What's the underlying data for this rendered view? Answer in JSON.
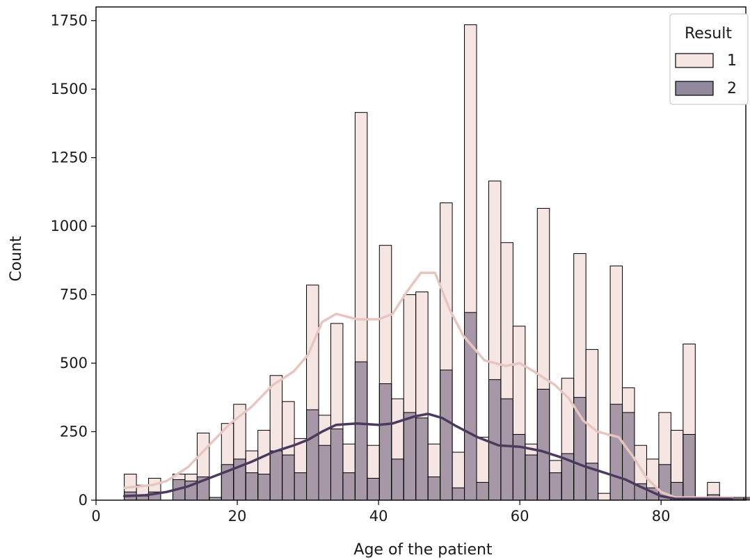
{
  "chart_data": {
    "type": "bar",
    "subtype": "histogram with kde",
    "xlabel": "Age of the patient",
    "ylabel": "Count",
    "xlim": [
      0,
      92
    ],
    "ylim": [
      0,
      1800
    ],
    "xticks": [
      0,
      20,
      40,
      60,
      80
    ],
    "yticks": [
      0,
      250,
      500,
      750,
      1000,
      1250,
      1500,
      1750
    ],
    "legend": {
      "title": "Result",
      "position": "top-right"
    },
    "bin_start": 4,
    "bin_width": 1.72,
    "series": [
      {
        "name": "1",
        "color": "#e8c6c0",
        "values": [
          95,
          55,
          80,
          0,
          95,
          95,
          245,
          0,
          280,
          350,
          180,
          255,
          455,
          360,
          225,
          785,
          310,
          645,
          205,
          1415,
          200,
          930,
          370,
          750,
          760,
          205,
          1085,
          175,
          1735,
          230,
          1165,
          940,
          635,
          205,
          1065,
          145,
          445,
          900,
          550,
          25,
          855,
          410,
          200,
          150,
          320,
          255,
          570,
          0,
          65,
          5,
          10,
          10,
          10,
          10,
          10,
          10,
          10,
          50
        ],
        "kde": [
          [
            4,
            45
          ],
          [
            6,
            50
          ],
          [
            8,
            55
          ],
          [
            10,
            70
          ],
          [
            13,
            120
          ],
          [
            16,
            200
          ],
          [
            19,
            280
          ],
          [
            22,
            340
          ],
          [
            25,
            420
          ],
          [
            28,
            470
          ],
          [
            30,
            530
          ],
          [
            32,
            650
          ],
          [
            34,
            680
          ],
          [
            37,
            660
          ],
          [
            40,
            660
          ],
          [
            42,
            680
          ],
          [
            44,
            760
          ],
          [
            46,
            830
          ],
          [
            48,
            830
          ],
          [
            50,
            700
          ],
          [
            52,
            600
          ],
          [
            55,
            510
          ],
          [
            58,
            490
          ],
          [
            60,
            500
          ],
          [
            62,
            470
          ],
          [
            65,
            420
          ],
          [
            67,
            370
          ],
          [
            69,
            290
          ],
          [
            71,
            250
          ],
          [
            74,
            230
          ],
          [
            76,
            160
          ],
          [
            78,
            80
          ],
          [
            80,
            30
          ],
          [
            82,
            10
          ],
          [
            86,
            10
          ],
          [
            90,
            10
          ]
        ]
      },
      {
        "name": "2",
        "color": "#4a3a5e",
        "values": [
          30,
          15,
          30,
          0,
          75,
          70,
          85,
          10,
          130,
          150,
          100,
          95,
          180,
          165,
          100,
          330,
          200,
          260,
          100,
          505,
          80,
          425,
          150,
          320,
          300,
          85,
          475,
          45,
          685,
          65,
          440,
          370,
          240,
          165,
          405,
          100,
          170,
          375,
          135,
          0,
          350,
          320,
          60,
          45,
          130,
          65,
          240,
          0,
          20,
          0,
          5,
          5,
          5,
          5,
          5,
          5,
          5,
          10
        ],
        "kde": [
          [
            4,
            15
          ],
          [
            7,
            18
          ],
          [
            10,
            30
          ],
          [
            13,
            50
          ],
          [
            16,
            80
          ],
          [
            19,
            110
          ],
          [
            22,
            140
          ],
          [
            25,
            175
          ],
          [
            28,
            200
          ],
          [
            30,
            220
          ],
          [
            32,
            250
          ],
          [
            34,
            275
          ],
          [
            37,
            280
          ],
          [
            40,
            275
          ],
          [
            42,
            280
          ],
          [
            45,
            305
          ],
          [
            47,
            315
          ],
          [
            49,
            300
          ],
          [
            51,
            270
          ],
          [
            54,
            230
          ],
          [
            57,
            200
          ],
          [
            60,
            195
          ],
          [
            63,
            180
          ],
          [
            66,
            155
          ],
          [
            69,
            125
          ],
          [
            72,
            100
          ],
          [
            75,
            75
          ],
          [
            77,
            50
          ],
          [
            80,
            15
          ],
          [
            82,
            5
          ],
          [
            86,
            5
          ],
          [
            90,
            5
          ]
        ]
      }
    ]
  }
}
